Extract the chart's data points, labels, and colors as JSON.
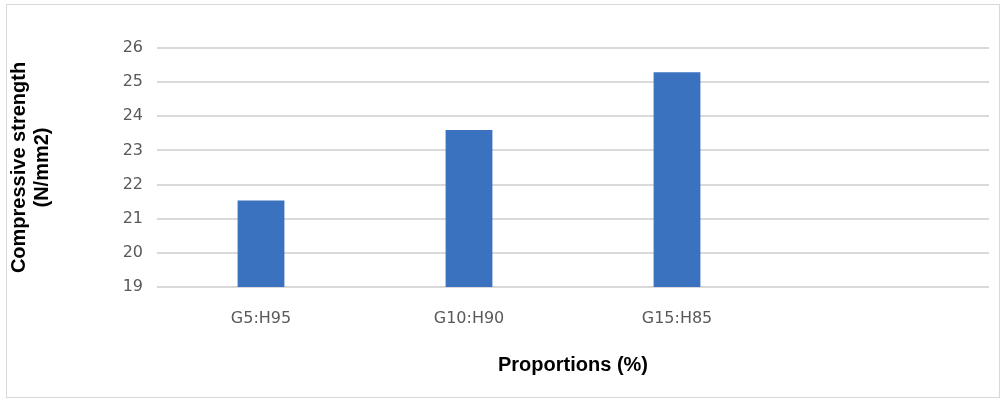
{
  "chart_data": {
    "type": "bar",
    "xlabel": "Proportions (%)",
    "ylabel": "Compressive strength (N/mm2)",
    "categories": [
      "G5:H95",
      "G10:H90",
      "G15:H85",
      null
    ],
    "values": [
      21.53,
      23.6,
      25.29,
      null
    ],
    "color": "#3b72bf",
    "ylim": [
      19,
      26
    ],
    "yticks": [
      19,
      20,
      21,
      22,
      23,
      24,
      25,
      26
    ],
    "grid": "y"
  }
}
